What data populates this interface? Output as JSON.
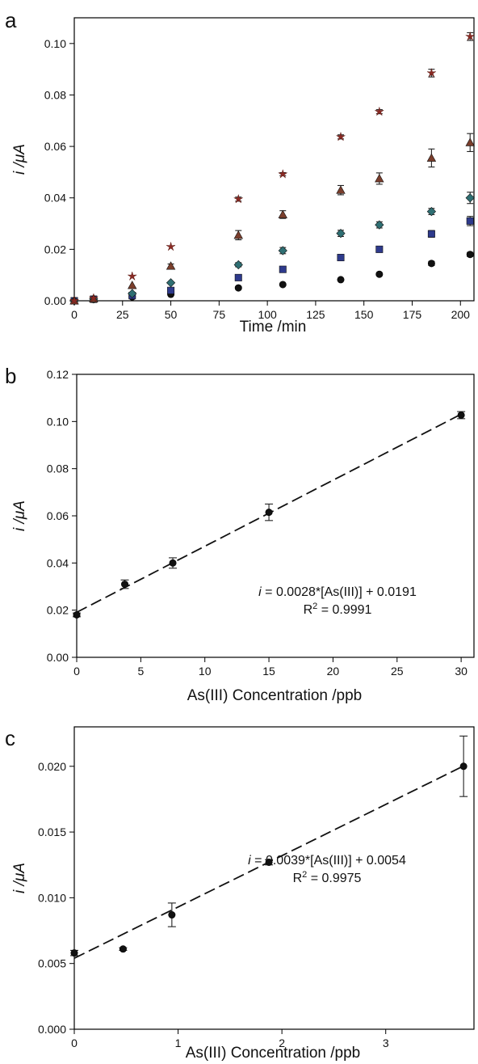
{
  "chart_data": [
    {
      "panel": "a",
      "type": "scatter",
      "xlabel": "Time /min",
      "ylabel": "i /μA",
      "xlim": [
        0,
        207
      ],
      "ylim": [
        0,
        0.11
      ],
      "xticks": [
        0,
        25,
        50,
        75,
        100,
        125,
        150,
        175,
        200
      ],
      "xtick_labels": [
        "0",
        "25",
        "50",
        "75",
        "100",
        "125",
        "150",
        "175",
        "200"
      ],
      "yticks": [
        0,
        0.02,
        0.04,
        0.06,
        0.08,
        0.1
      ],
      "ytick_labels": [
        "0.00",
        "0.02",
        "0.04",
        "0.06",
        "0.08",
        "0.10"
      ],
      "x": [
        0,
        10,
        30,
        50,
        85,
        108,
        138,
        158,
        185,
        205
      ],
      "series": [
        {
          "marker": "circle",
          "color": "#111111",
          "values": [
            0.0,
            0.0005,
            0.0015,
            0.0025,
            0.005,
            0.0063,
            0.0082,
            0.0103,
            0.0145,
            0.018
          ],
          "errors": [
            0,
            0,
            0,
            0,
            0,
            0,
            0,
            0,
            0.0008,
            0.0008
          ]
        },
        {
          "marker": "square",
          "color": "#2e3a8c",
          "values": [
            0.0,
            0.0006,
            0.002,
            0.004,
            0.009,
            0.0122,
            0.0168,
            0.02,
            0.026,
            0.031
          ],
          "errors": [
            0,
            0,
            0,
            0,
            0.0006,
            0.0006,
            0.0008,
            0.0008,
            0.0013,
            0.0018
          ]
        },
        {
          "marker": "diamond",
          "color": "#2f6f73",
          "values": [
            0.0,
            0.0007,
            0.0028,
            0.007,
            0.014,
            0.0195,
            0.0262,
            0.0295,
            0.0347,
            0.04
          ],
          "errors": [
            0,
            0,
            0,
            0,
            0.0008,
            0.0012,
            0.0012,
            0.0012,
            0.0012,
            0.0022
          ]
        },
        {
          "marker": "triangle",
          "color": "#7a3e2c",
          "values": [
            0.0,
            0.0008,
            0.006,
            0.0135,
            0.0255,
            0.0335,
            0.043,
            0.0475,
            0.0555,
            0.0615
          ],
          "errors": [
            0,
            0,
            0,
            0.0008,
            0.0018,
            0.0015,
            0.0018,
            0.0022,
            0.0035,
            0.0035
          ]
        },
        {
          "marker": "star",
          "color": "#8b2a24",
          "values": [
            0.0,
            0.001,
            0.0095,
            0.021,
            0.0395,
            0.0492,
            0.0637,
            0.0735,
            0.0885,
            0.1027
          ],
          "errors": [
            0,
            0,
            0,
            0,
            0.0008,
            0.0006,
            0.0008,
            0.0008,
            0.0015,
            0.0015
          ]
        }
      ]
    },
    {
      "panel": "b",
      "type": "scatter",
      "xlabel": "As(III) Concentration /ppb",
      "ylabel": "i /μA",
      "xlim": [
        0,
        31
      ],
      "ylim": [
        0,
        0.12
      ],
      "xticks": [
        0,
        5,
        10,
        15,
        20,
        25,
        30
      ],
      "xtick_labels": [
        "0",
        "5",
        "10",
        "15",
        "20",
        "25",
        "30"
      ],
      "yticks": [
        0,
        0.02,
        0.04,
        0.06,
        0.08,
        0.1,
        0.12
      ],
      "ytick_labels": [
        "0.00",
        "0.02",
        "0.04",
        "0.06",
        "0.08",
        "0.10",
        "0.12"
      ],
      "x": [
        0,
        3.75,
        7.5,
        15,
        30
      ],
      "y": [
        0.018,
        0.031,
        0.04,
        0.0615,
        0.1027
      ],
      "errors": [
        0.0008,
        0.0018,
        0.0022,
        0.0035,
        0.0015
      ],
      "fit": {
        "slope": 0.0028,
        "intercept": 0.0191,
        "x_range": [
          0,
          30
        ]
      },
      "annotation_i": "i",
      "annotation_eq": " = 0.0028*[As(III)] + 0.0191",
      "annotation_r2_label": "R",
      "annotation_r2_sup": "2",
      "annotation_r2_value": " = 0.9991"
    },
    {
      "panel": "c",
      "type": "scatter",
      "xlabel": "As(III) Concentration /ppb",
      "ylabel": "i /μA",
      "xlim": [
        0,
        3.85
      ],
      "ylim": [
        0,
        0.023
      ],
      "xticks": [
        0,
        1,
        2,
        3
      ],
      "xtick_labels": [
        "0",
        "1",
        "2",
        "3"
      ],
      "yticks": [
        0,
        0.005,
        0.01,
        0.015,
        0.02
      ],
      "ytick_labels": [
        "0.000",
        "0.005",
        "0.010",
        "0.015",
        "0.020"
      ],
      "x": [
        0,
        0.47,
        0.94,
        1.875,
        3.75
      ],
      "y": [
        0.0058,
        0.0061,
        0.0087,
        0.0127,
        0.02
      ],
      "errors": [
        0.0002,
        0.0001,
        0.0009,
        0.0002,
        0.0023
      ],
      "fit": {
        "slope": 0.0039,
        "intercept": 0.0054,
        "x_range": [
          0,
          3.75
        ]
      },
      "annotation_i": "i",
      "annotation_eq": " = 0.0039*[As(III)] + 0.0054",
      "annotation_r2_label": "R",
      "annotation_r2_sup": "2",
      "annotation_r2_value": " = 0.9975"
    }
  ]
}
